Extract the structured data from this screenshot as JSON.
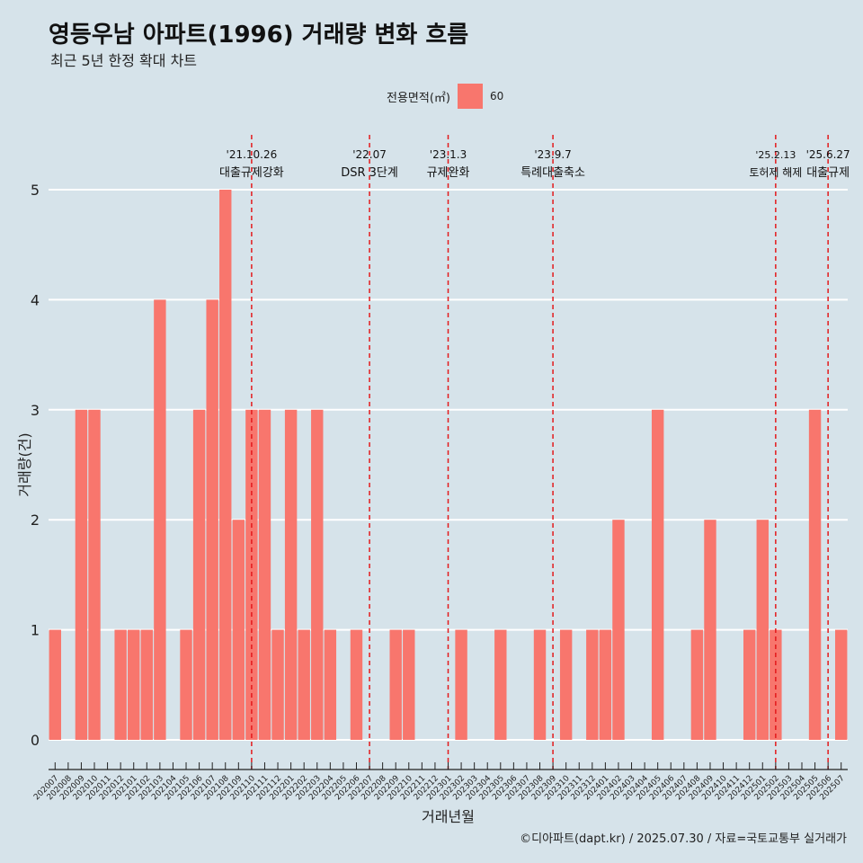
{
  "title": "영등우남 아파트(1996) 거래량 변화 흐름",
  "subtitle": "최근 5년 한정 확대 차트",
  "caption": "©디아파트(dapt.kr) / 2025.07.30 / 자료=국토교통부 실거래가",
  "legend": {
    "title": "전용면적(㎡)",
    "label": "60"
  },
  "colors": {
    "background": "#d6e3ea",
    "bar": "#f8766d",
    "event_line": "#e31a1c",
    "grid": "#ffffff"
  },
  "chart_data": {
    "type": "bar",
    "xlabel": "거래년월",
    "ylabel": "거래량(건)",
    "ylim": [
      0,
      5
    ],
    "yticks": [
      0,
      1,
      2,
      3,
      4,
      5
    ],
    "grid": true,
    "legend_position": "top",
    "series": [
      {
        "name": "60"
      }
    ],
    "categories": [
      "202007",
      "202008",
      "202009",
      "202010",
      "202011",
      "202012",
      "202101",
      "202102",
      "202103",
      "202104",
      "202105",
      "202106",
      "202107",
      "202108",
      "202109",
      "202110",
      "202111",
      "202112",
      "202201",
      "202202",
      "202203",
      "202204",
      "202205",
      "202206",
      "202207",
      "202208",
      "202209",
      "202210",
      "202211",
      "202212",
      "202301",
      "202302",
      "202303",
      "202304",
      "202305",
      "202306",
      "202307",
      "202308",
      "202309",
      "202310",
      "202311",
      "202312",
      "202401",
      "202402",
      "202403",
      "202404",
      "202405",
      "202406",
      "202407",
      "202408",
      "202409",
      "202410",
      "202411",
      "202412",
      "202501",
      "202502",
      "202503",
      "202504",
      "202505",
      "202506",
      "202507"
    ],
    "values": [
      1,
      0,
      3,
      3,
      0,
      1,
      1,
      1,
      4,
      0,
      1,
      3,
      4,
      5,
      2,
      3,
      3,
      1,
      3,
      1,
      3,
      1,
      0,
      1,
      0,
      0,
      1,
      1,
      0,
      0,
      0,
      1,
      0,
      0,
      1,
      0,
      0,
      1,
      0,
      1,
      0,
      1,
      1,
      2,
      0,
      0,
      3,
      0,
      0,
      1,
      2,
      0,
      0,
      1,
      2,
      1,
      0,
      0,
      3,
      0,
      1
    ],
    "annotations": [
      {
        "at": "202110",
        "date": "'21.10.26",
        "label": "대출규제강화"
      },
      {
        "at": "202207",
        "date": "'22.07",
        "label": "DSR 3단계"
      },
      {
        "at": "202301",
        "date": "'23.1.3",
        "label": "규제완화"
      },
      {
        "at": "202309",
        "date": "'23.9.7",
        "label": "특례대출축소"
      },
      {
        "at": "202502",
        "date": "'25.2.13",
        "label": "토허제 해제"
      },
      {
        "at": "202506",
        "date": "'25.6.27",
        "label": "대출규제"
      }
    ]
  }
}
